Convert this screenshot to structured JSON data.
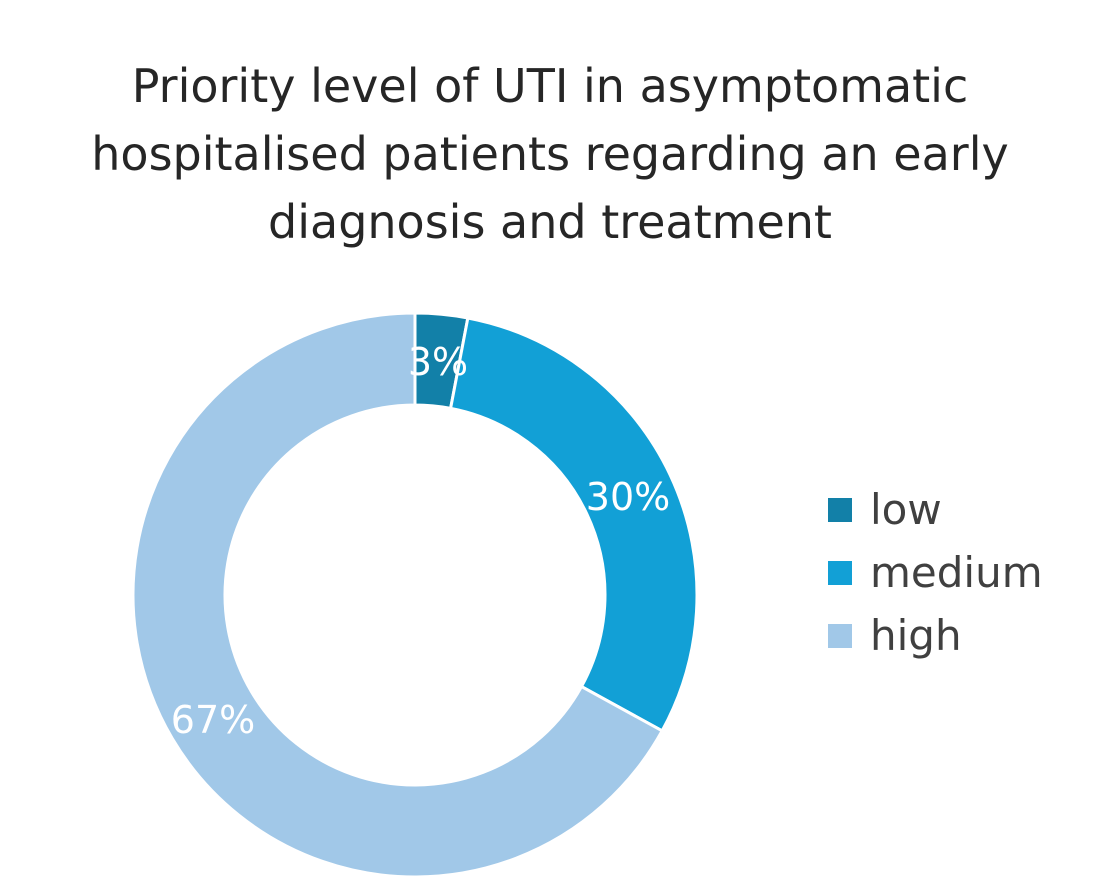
{
  "chart_data": {
    "type": "pie",
    "variant": "donut",
    "title_lines": [
      "Priority level of UTI in asymptomatic",
      "hospitalised patients regarding an early",
      "diagnosis and treatment"
    ],
    "categories": [
      "low",
      "medium",
      "high"
    ],
    "values": [
      3,
      30,
      67
    ],
    "data_labels": [
      "3%",
      "30%",
      "67%"
    ],
    "colors": [
      "#1280a8",
      "#12a0d6",
      "#a1c8e8"
    ],
    "legend_position": "right"
  }
}
